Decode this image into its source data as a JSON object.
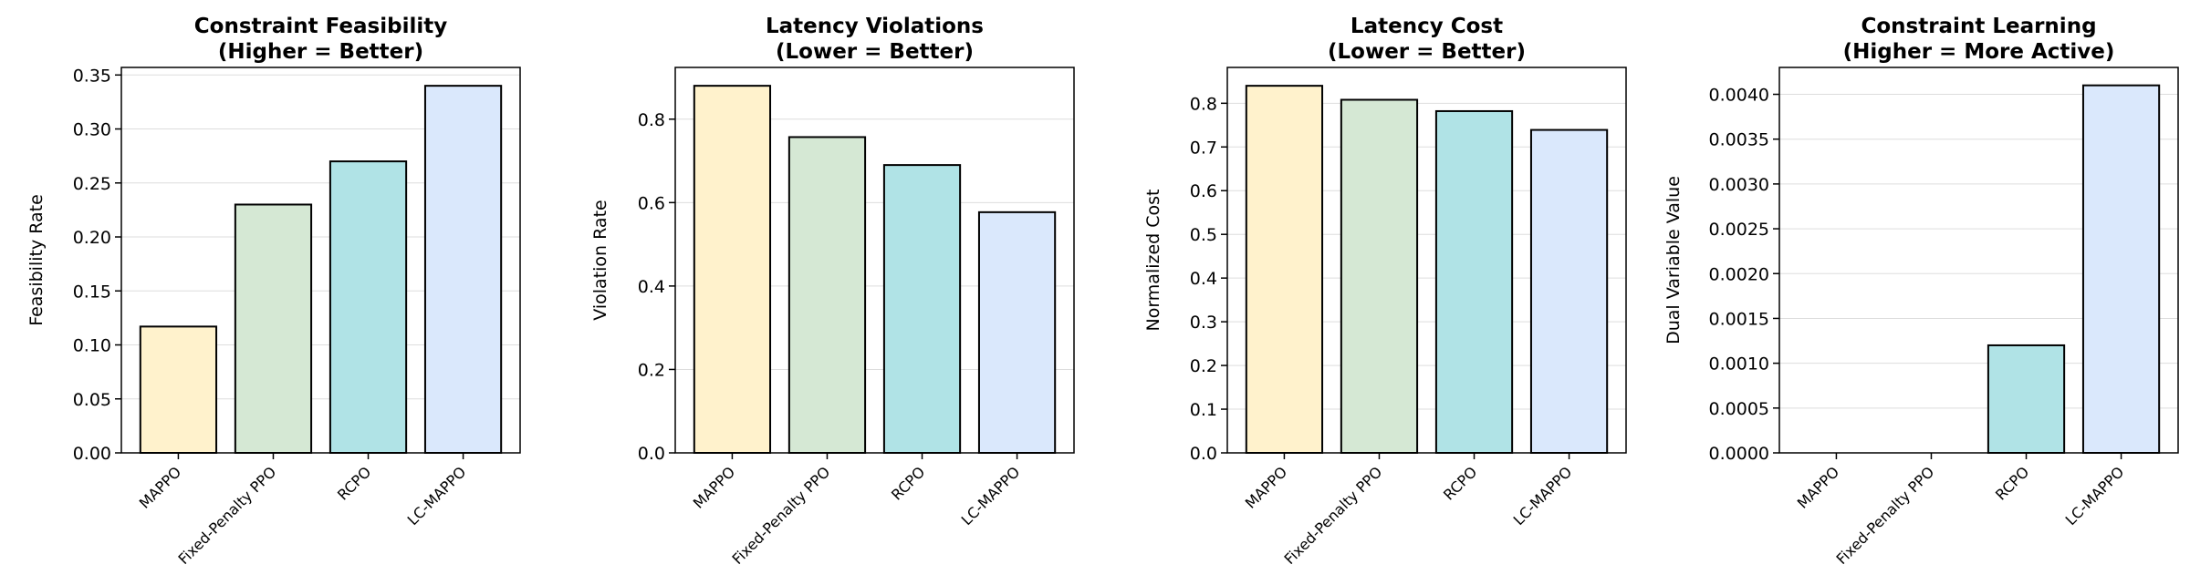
{
  "chart_data": [
    {
      "type": "bar",
      "title": "Constraint Feasibility",
      "subtitle": "(Higher = Better)",
      "xlabel": "",
      "ylabel": "Feasibility Rate",
      "categories": [
        "MAPPO",
        "Fixed-Penalty PPO",
        "RCPO",
        "LC-MAPPO"
      ],
      "values": [
        0.117,
        0.23,
        0.27,
        0.34
      ],
      "ylim": [
        0,
        0.357
      ],
      "yticks": [
        0.0,
        0.05,
        0.1,
        0.15,
        0.2,
        0.25,
        0.3,
        0.35
      ],
      "ytick_labels": [
        "0.00",
        "0.05",
        "0.10",
        "0.15",
        "0.20",
        "0.25",
        "0.30",
        "0.35"
      ],
      "grid": "horizontal",
      "colors": [
        "#fff2cc",
        "#d5e8d4",
        "#b0e3e6",
        "#dae8fc"
      ]
    },
    {
      "type": "bar",
      "title": "Latency Violations",
      "subtitle": "(Lower = Better)",
      "xlabel": "",
      "ylabel": "Violation Rate",
      "categories": [
        "MAPPO",
        "Fixed-Penalty PPO",
        "RCPO",
        "LC-MAPPO"
      ],
      "values": [
        0.88,
        0.757,
        0.69,
        0.577
      ],
      "ylim": [
        0,
        0.924
      ],
      "yticks": [
        0.0,
        0.2,
        0.4,
        0.6,
        0.8
      ],
      "ytick_labels": [
        "0.0",
        "0.2",
        "0.4",
        "0.6",
        "0.8"
      ],
      "grid": "horizontal",
      "colors": [
        "#fff2cc",
        "#d5e8d4",
        "#b0e3e6",
        "#dae8fc"
      ]
    },
    {
      "type": "bar",
      "title": "Latency Cost",
      "subtitle": "(Lower = Better)",
      "xlabel": "",
      "ylabel": "Normalized Cost",
      "categories": [
        "MAPPO",
        "Fixed-Penalty PPO",
        "RCPO",
        "LC-MAPPO"
      ],
      "values": [
        0.84,
        0.808,
        0.782,
        0.739
      ],
      "ylim": [
        0,
        0.882
      ],
      "yticks": [
        0.0,
        0.1,
        0.2,
        0.3,
        0.4,
        0.5,
        0.6,
        0.7,
        0.8
      ],
      "ytick_labels": [
        "0.0",
        "0.1",
        "0.2",
        "0.3",
        "0.4",
        "0.5",
        "0.6",
        "0.7",
        "0.8"
      ],
      "grid": "horizontal",
      "colors": [
        "#fff2cc",
        "#d5e8d4",
        "#b0e3e6",
        "#dae8fc"
      ]
    },
    {
      "type": "bar",
      "title": "Constraint Learning",
      "subtitle": "(Higher = More Active)",
      "xlabel": "",
      "ylabel": "Dual Variable Value",
      "categories": [
        "MAPPO",
        "Fixed-Penalty PPO",
        "RCPO",
        "LC-MAPPO"
      ],
      "values": [
        0,
        0,
        0.0012,
        0.0041
      ],
      "ylim": [
        0,
        0.0043
      ],
      "yticks": [
        0.0,
        0.0005,
        0.001,
        0.0015,
        0.002,
        0.0025,
        0.003,
        0.0035,
        0.004
      ],
      "ytick_labels": [
        "0.0000",
        "0.0005",
        "0.0010",
        "0.0015",
        "0.0020",
        "0.0025",
        "0.0030",
        "0.0035",
        "0.0040"
      ],
      "grid": "horizontal",
      "colors": [
        "#fff2cc",
        "#d5e8d4",
        "#b0e3e6",
        "#dae8fc"
      ]
    }
  ]
}
